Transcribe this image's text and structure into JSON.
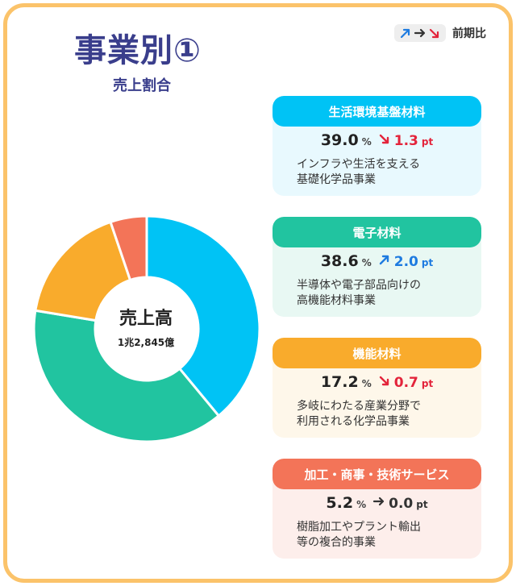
{
  "title": "事業別①",
  "subtitle": "売上割合",
  "legend_key": {
    "label": "前期比",
    "icons": [
      "up-arrow-icon",
      "flat-arrow-icon",
      "down-arrow-icon"
    ]
  },
  "colors": {
    "frame": "#fbc36a",
    "up": "#1e7be0",
    "down": "#e3243b",
    "flat": "#333333"
  },
  "center": {
    "title": "売上高",
    "value": "1兆2,845億"
  },
  "chart_data": {
    "type": "pie",
    "title": "",
    "unit": "%",
    "start": "12 o'clock",
    "direction": "clockwise",
    "categories": [
      "生活環境基盤材料",
      "電子材料",
      "機能材料",
      "加工・商事・技術サービス"
    ],
    "values": [
      39.0,
      38.6,
      17.2,
      5.2
    ],
    "colors": [
      "#00c3f5",
      "#21c4a0",
      "#f9ab2c",
      "#f37458"
    ]
  },
  "segments": [
    {
      "name": "生活環境基盤材料",
      "share": "39.0",
      "unit": "%",
      "direction": "down",
      "change": "1.3",
      "change_unit": "pt",
      "description": "インフラや生活を支える\n基礎化学品事業",
      "color": "#00c3f5",
      "bg": "#e8f9fe"
    },
    {
      "name": "電子材料",
      "share": "38.6",
      "unit": "%",
      "direction": "up",
      "change": "2.0",
      "change_unit": "pt",
      "description": "半導体や電子部品向けの\n高機能材料事業",
      "color": "#21c4a0",
      "bg": "#e8f8f3"
    },
    {
      "name": "機能材料",
      "share": "17.2",
      "unit": "%",
      "direction": "down",
      "change": "0.7",
      "change_unit": "pt",
      "description": "多岐にわたる産業分野で\n利用される化学品事業",
      "color": "#f9ab2c",
      "bg": "#fef7ea"
    },
    {
      "name": "加工・商事・技術サービス",
      "share": "5.2",
      "unit": "%",
      "direction": "flat",
      "change": "0.0",
      "change_unit": "pt",
      "description": "樹脂加工やプラント輸出\n等の複合的事業",
      "color": "#f37458",
      "bg": "#fdeeeb"
    }
  ]
}
